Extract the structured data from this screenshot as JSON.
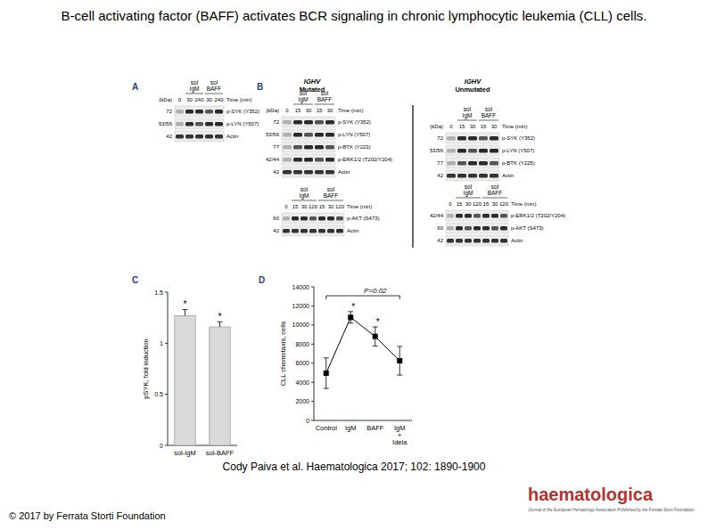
{
  "header": {
    "title": "B-cell activating factor (BAFF) activates BCR signaling in chronic lymphocytic leukemia (CLL) cells."
  },
  "panels": {
    "A": {
      "letter": "A",
      "blots": [
        {
          "treatments": [
            "sol IgM",
            "sol BAFF"
          ],
          "times": [
            "0",
            "30",
            "240",
            "30",
            "240"
          ],
          "time_label": "Time (min)",
          "kda_label": "(kDa)",
          "rows": [
            {
              "kda": "72",
              "label": "p-SYK (Y352)"
            },
            {
              "kda": "53/56",
              "label": "p-LYN (Y507)"
            },
            {
              "kda": "42",
              "label": "Actin"
            }
          ]
        }
      ]
    },
    "B": {
      "letter": "B",
      "groups": [
        {
          "heading_italic": "IGHV",
          "heading": "Mutated",
          "blots": [
            {
              "treatments": [
                "sol IgM",
                "sol BAFF"
              ],
              "times": [
                "0",
                "15",
                "30",
                "15",
                "30"
              ],
              "time_label": "Time (min)",
              "kda_label": "(kDa)",
              "rows": [
                {
                  "kda": "72",
                  "label": "p-SYK (Y352)"
                },
                {
                  "kda": "53/56",
                  "label": "p-LYN (Y507)"
                },
                {
                  "kda": "77",
                  "label": "p-BTK (Y223)"
                },
                {
                  "kda": "42/44",
                  "label": "p-ERK1/2 (T202/Y204)"
                },
                {
                  "kda": "42",
                  "label": "Actin"
                }
              ]
            },
            {
              "treatments": [
                "sol IgM",
                "sol BAFF"
              ],
              "times": [
                "0",
                "15",
                "30",
                "120",
                "15",
                "30",
                "120"
              ],
              "time_label": "Time (min)",
              "rows": [
                {
                  "kda": "60",
                  "label": "p-AKT (S473)"
                },
                {
                  "kda": "42",
                  "label": "Actin"
                }
              ]
            }
          ]
        },
        {
          "heading_italic": "IGHV",
          "heading": "Unmutated",
          "blots": [
            {
              "treatments": [
                "sol IgM",
                "sol BAFF"
              ],
              "times": [
                "0",
                "15",
                "30",
                "15",
                "30"
              ],
              "time_label": "Time (min)",
              "kda_label": "(kDa)",
              "rows": [
                {
                  "kda": "72",
                  "label": "p-SYK (Y352)"
                },
                {
                  "kda": "53/56",
                  "label": "p-LYN (Y507)"
                },
                {
                  "kda": "77",
                  "label": "p-BTK (Y225)"
                },
                {
                  "kda": "42",
                  "label": "Actin"
                }
              ]
            },
            {
              "treatments": [
                "sol IgM",
                "sol BAFF"
              ],
              "times": [
                "0",
                "15",
                "30",
                "120",
                "15",
                "30",
                "120"
              ],
              "time_label": "Time (min)",
              "rows": [
                {
                  "kda": "42/44",
                  "label": "p-ERK1/2 (T202/Y204)"
                },
                {
                  "kda": "60",
                  "label": "p-AKT (S473)"
                },
                {
                  "kda": "42",
                  "label": "Actin"
                }
              ]
            }
          ]
        }
      ]
    }
  },
  "chart_data": [
    {
      "type": "bar",
      "title": "C",
      "y_label": "pSYK, fold induction",
      "categories": [
        "sol-IgM",
        "sol-BAFF"
      ],
      "values": [
        1.27,
        1.16
      ],
      "errors": [
        0.06,
        0.05
      ],
      "annotations": [
        "*",
        "*"
      ],
      "color": "#d9d9d9",
      "ylim": [
        0,
        1.5
      ],
      "yticks": [
        0,
        0.5,
        1,
        1.5
      ],
      "grid": false
    },
    {
      "type": "line",
      "title": "D",
      "y_label": "CLL chemotaxis, cells",
      "categories": [
        "Control",
        "IgM",
        "BAFF",
        "IgM + Idela"
      ],
      "values": [
        4950,
        10800,
        8800,
        6250
      ],
      "errors": [
        1600,
        600,
        1000,
        1500
      ],
      "annotations": [
        null,
        "*",
        "*",
        null
      ],
      "significance": "P=0.02",
      "color": "#000000",
      "marker": "square",
      "ylim": [
        0,
        14000
      ],
      "yticks": [
        0,
        2000,
        4000,
        6000,
        8000,
        10000,
        12000,
        14000
      ],
      "grid": false
    }
  ],
  "citation": "Cody Paiva et al. Haematologica 2017; 102: 1890-1900",
  "copyright": "© 2017 by Ferrata Storti Foundation",
  "logo": {
    "name": "haematologica",
    "subtitle": "Journal of the European Hematology Association Published by the Ferrata Storti Foundation"
  }
}
